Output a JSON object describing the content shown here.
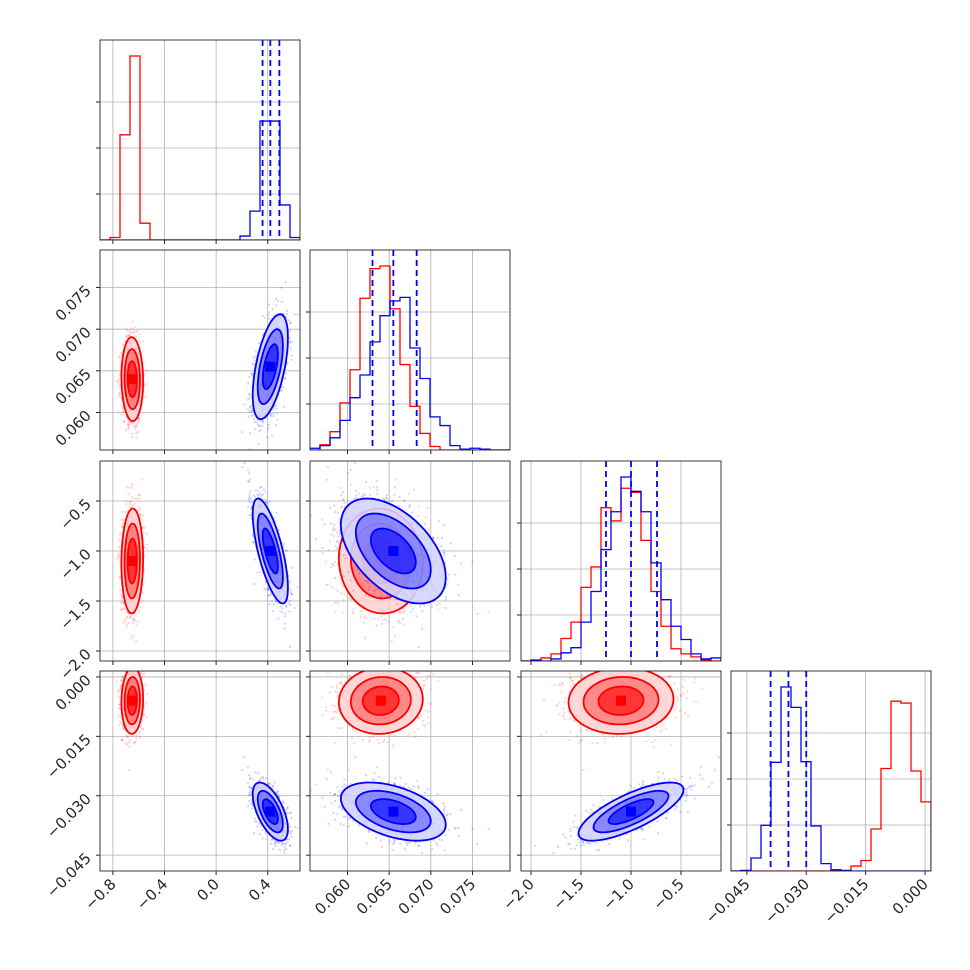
{
  "chart_data": {
    "type": "corner",
    "description_units": "posterior samples for 4 parameters; two sample sets (red, blue)",
    "params": [
      {
        "range": [
          -0.9,
          0.65
        ],
        "ticks": [
          -0.8,
          -0.4,
          0.0,
          0.4
        ],
        "tick_labels": [
          "−0.8",
          "−0.4",
          "0.0",
          "0.4"
        ]
      },
      {
        "range": [
          0.0555,
          0.0795
        ],
        "ticks": [
          0.06,
          0.065,
          0.07,
          0.075
        ],
        "tick_labels": [
          "0.060",
          "0.065",
          "0.070",
          "0.075"
        ]
      },
      {
        "range": [
          -2.1,
          -0.1
        ],
        "ticks": [
          -2.0,
          -1.5,
          -1.0,
          -0.5
        ],
        "tick_labels": [
          "−2.0",
          "−1.5",
          "−1.0",
          "−0.5"
        ]
      },
      {
        "range": [
          -0.049,
          0.0015
        ],
        "ticks": [
          -0.045,
          -0.03,
          -0.015,
          0.0
        ],
        "tick_labels": [
          "−0.045",
          "−0.030",
          "−0.015",
          "0.000"
        ]
      }
    ],
    "series": [
      {
        "color": "#ff0000",
        "mean": [
          -0.65,
          0.064,
          -1.1,
          -0.006
        ],
        "sd": [
          0.04,
          0.0024,
          0.25,
          0.004
        ],
        "corr": [
          [
            0,
            1,
            -0.05
          ],
          [
            0,
            2,
            0.05
          ],
          [
            0,
            3,
            0.05
          ],
          [
            1,
            2,
            -0.05
          ],
          [
            1,
            3,
            0.05
          ],
          [
            2,
            3,
            0.05
          ]
        ]
      },
      {
        "color": "#0000ff",
        "mean": [
          0.42,
          0.0655,
          -1.0,
          -0.034
        ],
        "sd": [
          0.065,
          0.003,
          0.25,
          0.0035
        ],
        "corr": [
          [
            0,
            1,
            0.55
          ],
          [
            0,
            2,
            -0.7
          ],
          [
            0,
            3,
            -0.6
          ],
          [
            1,
            2,
            -0.5
          ],
          [
            1,
            3,
            -0.45
          ],
          [
            2,
            3,
            0.75
          ]
        ]
      }
    ],
    "quantile_lines": {
      "color": "#0000ff",
      "values": [
        [
          0.36,
          0.42,
          0.49
        ],
        [
          0.063,
          0.0655,
          0.0683
        ],
        [
          -1.25,
          -1.0,
          -0.74
        ],
        [
          -0.039,
          -0.0345,
          -0.03
        ]
      ]
    },
    "histogram_bins": 20,
    "grid": true,
    "legend": "none"
  }
}
